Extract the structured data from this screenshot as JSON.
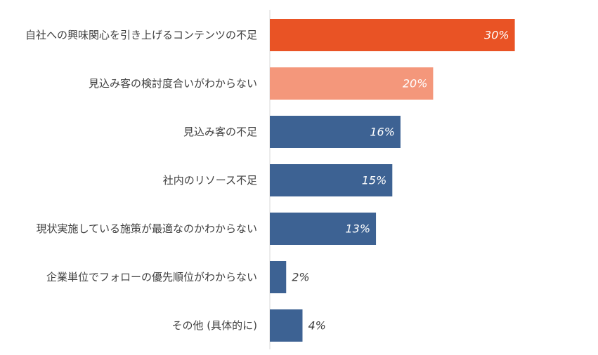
{
  "chart_data": {
    "type": "bar",
    "orientation": "horizontal",
    "categories": [
      "自社への興味関心を引き上げるコンテンツの不足",
      "見込み客の検討度合いがわからない",
      "見込み客の不足",
      "社内のリソース不足",
      "現状実施している施策が最適なのかわからない",
      "企業単位でフォローの優先順位がわからない",
      "その他 (具体的に)"
    ],
    "values": [
      30,
      20,
      16,
      15,
      13,
      2,
      4
    ],
    "value_labels": [
      "30%",
      "20%",
      "16%",
      "15%",
      "13%",
      "2%",
      "4%"
    ],
    "bar_colors": [
      "#e95325",
      "#f4977b",
      "#3d6293",
      "#3d6293",
      "#3d6293",
      "#3d6293",
      "#3d6293"
    ],
    "xlim": [
      0,
      40
    ],
    "grid": false,
    "title": "",
    "xlabel": "",
    "ylabel": ""
  },
  "colors": {
    "axis": "#d9d9d9",
    "label_text": "#404040",
    "value_inside": "#ffffff",
    "value_outside": "#404040"
  }
}
